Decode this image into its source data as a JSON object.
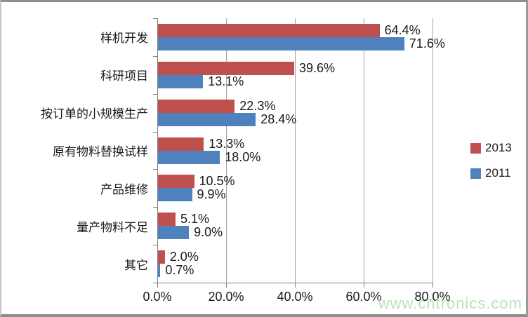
{
  "chart_data": {
    "type": "bar",
    "orientation": "horizontal",
    "title": "",
    "xlabel": "",
    "ylabel": "",
    "grid": true,
    "categories": [
      "样机开发",
      "科研项目",
      "按订单的小规模生产",
      "原有物料替换试样",
      "产品维修",
      "量产物料不足",
      "其它"
    ],
    "series": [
      {
        "name": "2013",
        "color": "#C0504D",
        "values": [
          64.4,
          39.6,
          22.3,
          13.3,
          10.5,
          5.1,
          2.0
        ],
        "labels": [
          "64.4%",
          "39.6%",
          "22.3%",
          "13.3%",
          "10.5%",
          "5.1%",
          "2.0%"
        ]
      },
      {
        "name": "2011",
        "color": "#4F81BD",
        "values": [
          71.6,
          13.1,
          28.4,
          18.0,
          9.9,
          9.0,
          0.7
        ],
        "labels": [
          "71.6%",
          "13.1%",
          "28.4%",
          "18.0%",
          "9.9%",
          "9.0%",
          "0.7%"
        ]
      }
    ],
    "x_axis": {
      "min": 0,
      "max": 80,
      "step": 20,
      "tick_labels": [
        "0.0%",
        "20.0%",
        "40.0%",
        "60.0%",
        "80.0%"
      ]
    },
    "legend_position": "right"
  },
  "legend": {
    "items": [
      {
        "label": "2013",
        "color": "#C0504D"
      },
      {
        "label": "2011",
        "color": "#4F81BD"
      }
    ]
  },
  "watermark": {
    "text": "www.cntronics.com",
    "color": "#B9E2BA"
  },
  "colors": {
    "series_2013": "#C0504D",
    "series_2011": "#4F81BD",
    "gridline": "#A3A3A3",
    "axis": "#7F7F7F",
    "text": "#1A1A1A",
    "background": "#FFFFFF"
  }
}
